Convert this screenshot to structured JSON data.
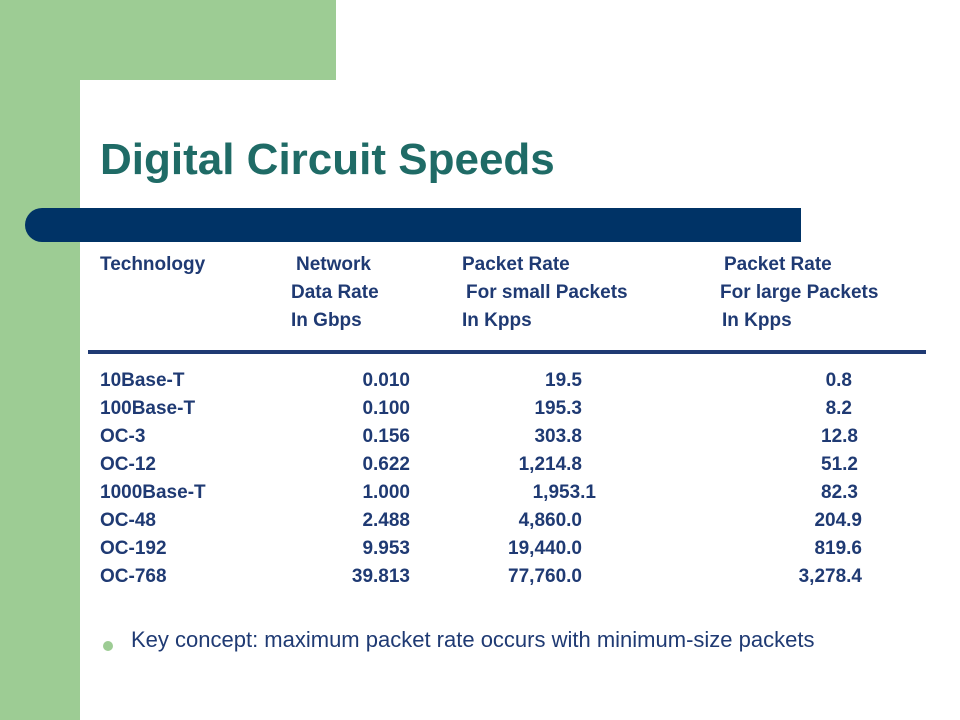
{
  "slide": {
    "title": "Digital Circuit Speeds",
    "bullet": "Key concept: maximum packet rate occurs with minimum-size packets"
  },
  "table": {
    "headers": {
      "technology": [
        "Technology"
      ],
      "network": [
        "Network",
        "Data Rate",
        "In Gbps"
      ],
      "small": [
        "Packet Rate",
        "For small Packets",
        "In Kpps"
      ],
      "large": [
        "Packet Rate",
        "For large Packets",
        "In Kpps"
      ]
    },
    "rows": [
      {
        "technology": "10Base-T",
        "rate": "0.010",
        "small": "19.5",
        "large": "0.8"
      },
      {
        "technology": "100Base-T",
        "rate": "0.100",
        "small": "195.3",
        "large": "8.2"
      },
      {
        "technology": "OC-3",
        "rate": "0.156",
        "small": "303.8",
        "large": "12.8"
      },
      {
        "technology": "OC-12",
        "rate": "0.622",
        "small": "1,214.8",
        "large": "51.2"
      },
      {
        "technology": "1000Base-T",
        "rate": "1.000",
        "small": "1,953.1",
        "large": "82.3"
      },
      {
        "technology": "OC-48",
        "rate": "2.488",
        "small": "4,860.0",
        "large": "204.9"
      },
      {
        "technology": "OC-192",
        "rate": "9.953",
        "small": "19,440.0",
        "large": "819.6"
      },
      {
        "technology": "OC-768",
        "rate": "39.813",
        "small": "77,760.0",
        "large": "3,278.4"
      }
    ]
  },
  "colors": {
    "accent_green": "#9dcc94",
    "title_teal": "#1f6b66",
    "bar_navy": "#003366",
    "text_navy": "#1f3a73"
  }
}
